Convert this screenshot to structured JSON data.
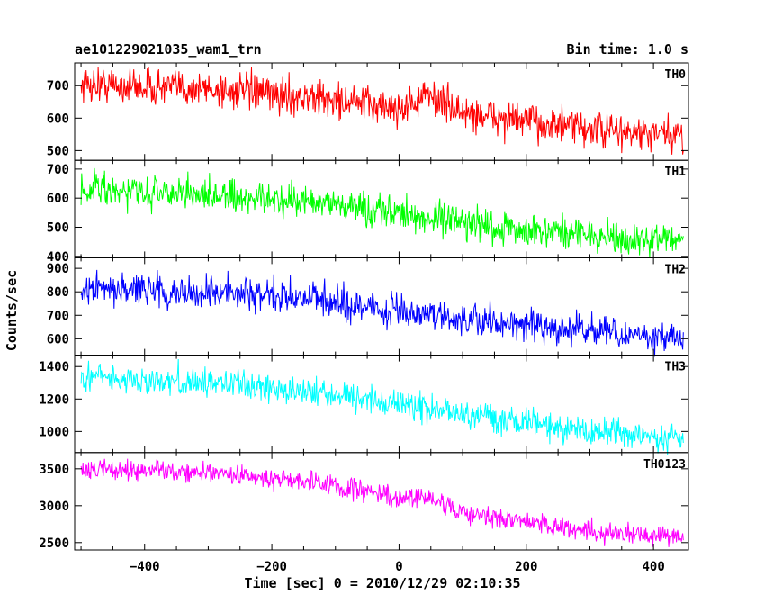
{
  "title_left": "ae101229021035_wam1_trn",
  "title_right": "Bin time: 1.0 s",
  "chart_data": {
    "type": "line",
    "xlabel": "Time [sec] 0 = 2010/12/29 02:10:35",
    "ylabel": "Counts/sec",
    "xlim": [
      -510,
      455
    ],
    "x_ticks": [
      -400,
      -200,
      0,
      200,
      400
    ],
    "x_range": [
      -500,
      447
    ],
    "grid": false,
    "panels": [
      {
        "name": "TH0",
        "color": "#ff0000",
        "ylim": [
          470,
          770
        ],
        "y_ticks": [
          500,
          600,
          700
        ],
        "trend": [
          [
            -500,
            705
          ],
          [
            -300,
            690
          ],
          [
            -100,
            655
          ],
          [
            0,
            630
          ],
          [
            50,
            670
          ],
          [
            100,
            615
          ],
          [
            200,
            590
          ],
          [
            300,
            565
          ],
          [
            447,
            540
          ]
        ],
        "noise": 28
      },
      {
        "name": "TH1",
        "color": "#00ff00",
        "ylim": [
          395,
          730
        ],
        "y_ticks": [
          400,
          500,
          600,
          700
        ],
        "trend": [
          [
            -500,
            635
          ],
          [
            -300,
            610
          ],
          [
            -150,
            585
          ],
          [
            0,
            550
          ],
          [
            100,
            520
          ],
          [
            200,
            490
          ],
          [
            300,
            470
          ],
          [
            447,
            455
          ]
        ],
        "noise": 28
      },
      {
        "name": "TH2",
        "color": "#0000ff",
        "ylim": [
          530,
          945
        ],
        "y_ticks": [
          600,
          700,
          800,
          900
        ],
        "trend": [
          [
            -500,
            810
          ],
          [
            -300,
            800
          ],
          [
            -100,
            760
          ],
          [
            0,
            720
          ],
          [
            100,
            680
          ],
          [
            200,
            655
          ],
          [
            300,
            630
          ],
          [
            447,
            600
          ]
        ],
        "noise": 35
      },
      {
        "name": "TH3",
        "color": "#00ffff",
        "ylim": [
          870,
          1470
        ],
        "y_ticks": [
          1000,
          1200,
          1400
        ],
        "trend": [
          [
            -500,
            1335
          ],
          [
            -300,
            1300
          ],
          [
            -100,
            1230
          ],
          [
            0,
            1165
          ],
          [
            100,
            1110
          ],
          [
            200,
            1060
          ],
          [
            300,
            1000
          ],
          [
            447,
            960
          ]
        ],
        "noise": 45
      },
      {
        "name": "TH0123",
        "color": "#ff00ff",
        "ylim": [
          2400,
          3720
        ],
        "y_ticks": [
          2500,
          3000,
          3500
        ],
        "trend": [
          [
            -500,
            3500
          ],
          [
            -300,
            3450
          ],
          [
            -100,
            3280
          ],
          [
            0,
            3080
          ],
          [
            50,
            3130
          ],
          [
            100,
            2900
          ],
          [
            200,
            2780
          ],
          [
            300,
            2660
          ],
          [
            447,
            2560
          ]
        ],
        "noise": 70
      }
    ]
  }
}
